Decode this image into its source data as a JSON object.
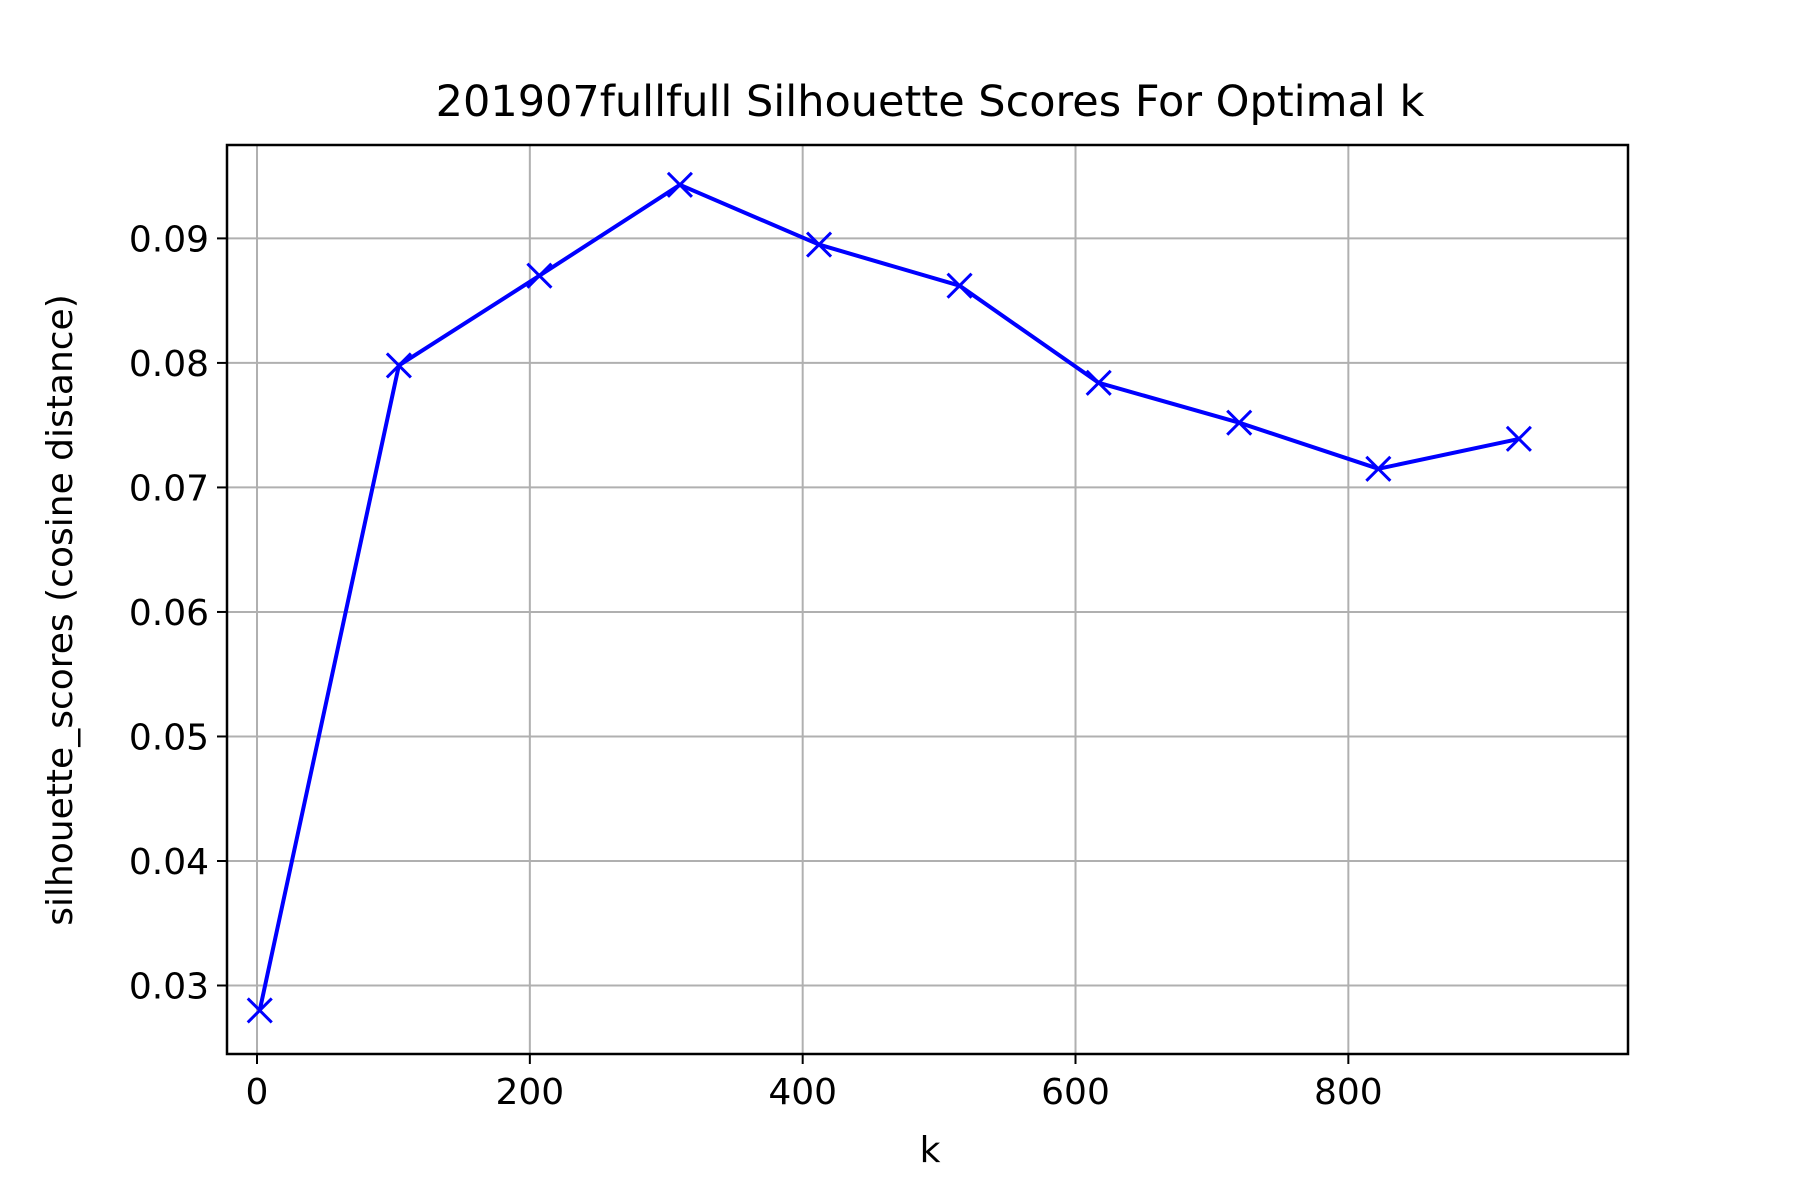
{
  "chart_data": {
    "type": "line",
    "title": "201907fullfull Silhouette Scores For Optimal k",
    "xlabel": "k",
    "ylabel": "silhouette_scores (cosine distance)",
    "xlim": [
      -22,
      1005
    ],
    "ylim": [
      0.0245,
      0.0975
    ],
    "x_ticks": [
      0,
      200,
      400,
      600,
      800
    ],
    "x_tick_labels": [
      "0",
      "200",
      "400",
      "600",
      "800"
    ],
    "y_ticks": [
      0.03,
      0.04,
      0.05,
      0.06,
      0.07,
      0.08,
      0.09
    ],
    "y_tick_labels": [
      "0.03",
      "0.04",
      "0.05",
      "0.06",
      "0.07",
      "0.08",
      "0.09"
    ],
    "grid": true,
    "marker": "x",
    "color": "#0000ff",
    "series": [
      {
        "x": [
          2,
          104,
          207,
          310,
          412,
          515,
          617,
          720,
          822,
          925
        ],
        "y": [
          0.028,
          0.0798,
          0.087,
          0.0943,
          0.0895,
          0.0862,
          0.0784,
          0.0752,
          0.0715,
          0.0739
        ]
      }
    ]
  }
}
